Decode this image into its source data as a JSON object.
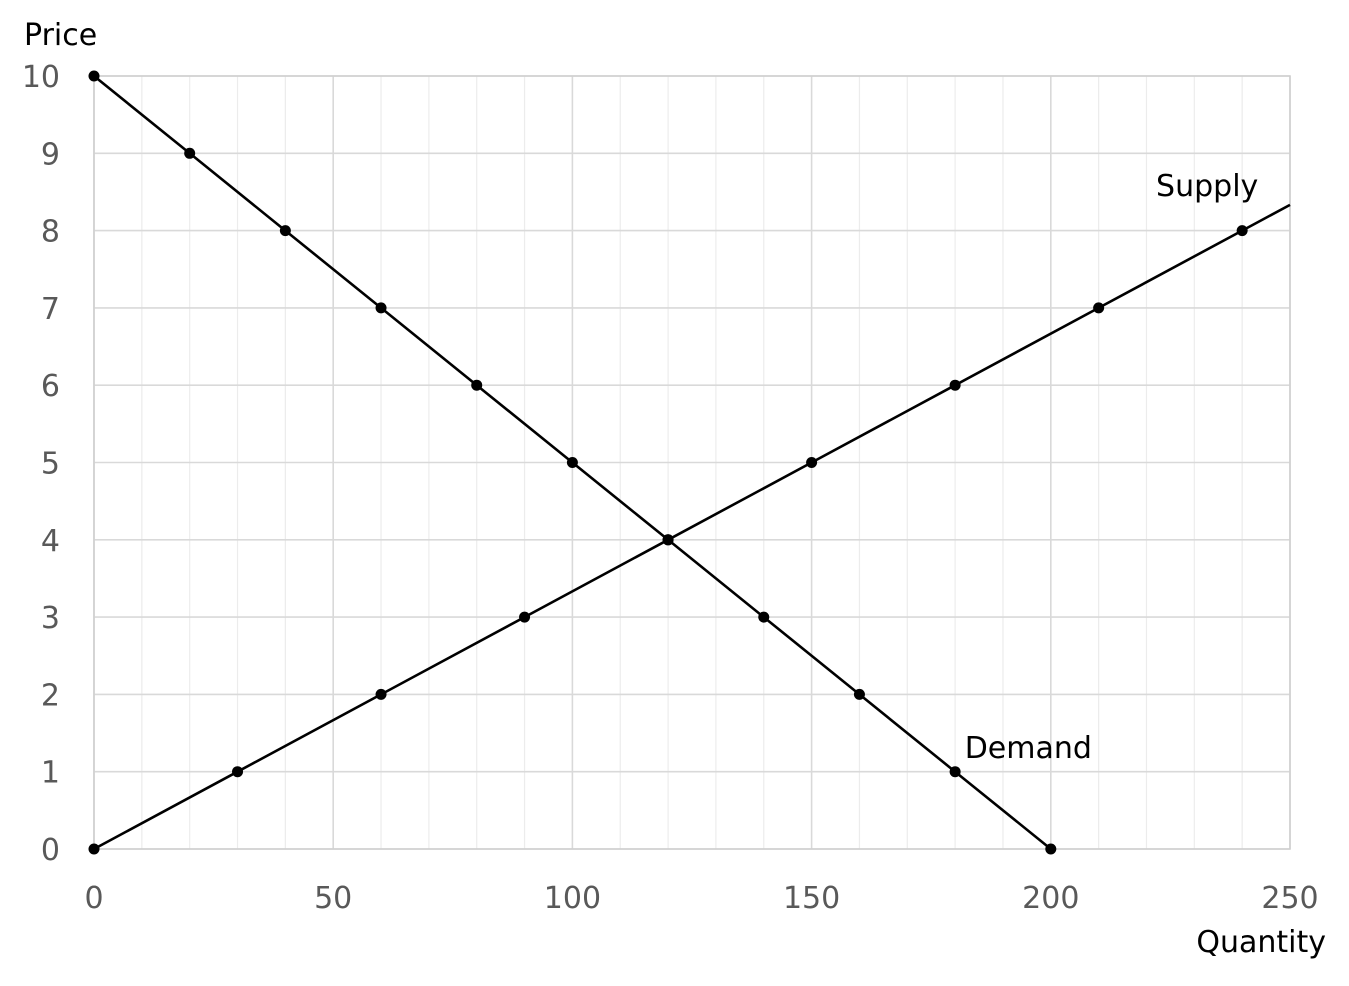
{
  "chart_data": {
    "type": "line",
    "xlabel": "Quantity",
    "ylabel": "Price",
    "xlim": [
      0,
      250
    ],
    "ylim": [
      0,
      10
    ],
    "x_ticks": [
      0,
      50,
      100,
      150,
      200,
      250
    ],
    "y_ticks": [
      0,
      1,
      2,
      3,
      4,
      5,
      6,
      7,
      8,
      9,
      10
    ],
    "x_minor_step": 10,
    "grid": true,
    "legend": "none",
    "series": [
      {
        "name": "Demand",
        "color": "#000000",
        "marker": "circle",
        "points": [
          [
            0,
            10
          ],
          [
            20,
            9
          ],
          [
            40,
            8
          ],
          [
            60,
            7
          ],
          [
            80,
            6
          ],
          [
            100,
            5
          ],
          [
            120,
            4
          ],
          [
            140,
            3
          ],
          [
            160,
            2
          ],
          [
            180,
            1
          ],
          [
            200,
            0
          ]
        ],
        "label_at": [
          182,
          1.18
        ]
      },
      {
        "name": "Supply",
        "color": "#000000",
        "marker": "circle",
        "points": [
          [
            0,
            0
          ],
          [
            30,
            1
          ],
          [
            60,
            2
          ],
          [
            90,
            3
          ],
          [
            120,
            4
          ],
          [
            150,
            5
          ],
          [
            180,
            6
          ],
          [
            210,
            7
          ],
          [
            240,
            8
          ]
        ],
        "line_to": [
          250,
          8.333
        ],
        "label_at": [
          222,
          8.45
        ]
      }
    ]
  }
}
